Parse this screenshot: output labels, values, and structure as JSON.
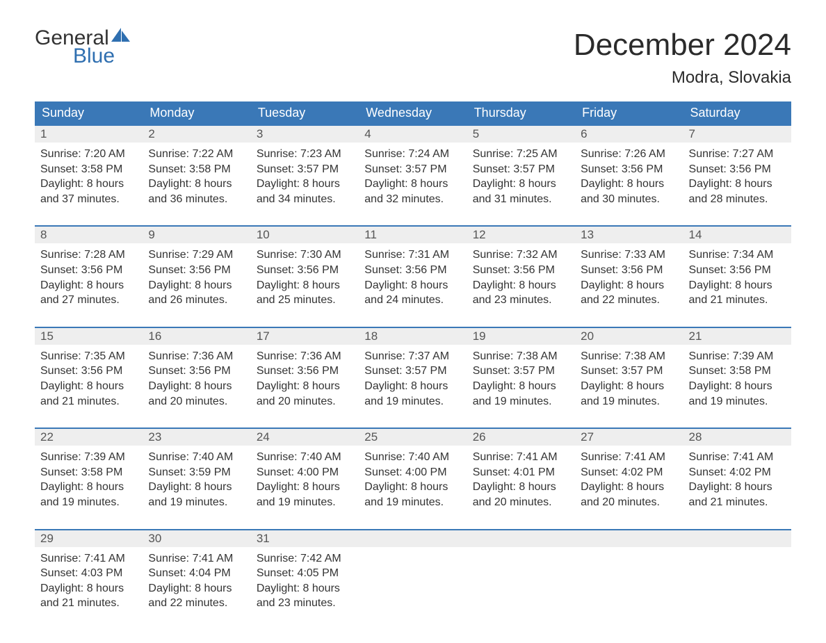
{
  "brand": {
    "text1": "General",
    "text2": "Blue",
    "sail_color": "#2f6fb0"
  },
  "title": "December 2024",
  "location": "Modra, Slovakia",
  "grid_border_color": "#3a78b7",
  "header_bg": "#3a78b7",
  "daynum_bg": "#eeeeee",
  "day_names": [
    "Sunday",
    "Monday",
    "Tuesday",
    "Wednesday",
    "Thursday",
    "Friday",
    "Saturday"
  ],
  "weeks": [
    [
      {
        "n": "1",
        "sunrise": "7:20 AM",
        "sunset": "3:58 PM",
        "daylight_h": "8",
        "daylight_m": "37"
      },
      {
        "n": "2",
        "sunrise": "7:22 AM",
        "sunset": "3:58 PM",
        "daylight_h": "8",
        "daylight_m": "36"
      },
      {
        "n": "3",
        "sunrise": "7:23 AM",
        "sunset": "3:57 PM",
        "daylight_h": "8",
        "daylight_m": "34"
      },
      {
        "n": "4",
        "sunrise": "7:24 AM",
        "sunset": "3:57 PM",
        "daylight_h": "8",
        "daylight_m": "32"
      },
      {
        "n": "5",
        "sunrise": "7:25 AM",
        "sunset": "3:57 PM",
        "daylight_h": "8",
        "daylight_m": "31"
      },
      {
        "n": "6",
        "sunrise": "7:26 AM",
        "sunset": "3:56 PM",
        "daylight_h": "8",
        "daylight_m": "30"
      },
      {
        "n": "7",
        "sunrise": "7:27 AM",
        "sunset": "3:56 PM",
        "daylight_h": "8",
        "daylight_m": "28"
      }
    ],
    [
      {
        "n": "8",
        "sunrise": "7:28 AM",
        "sunset": "3:56 PM",
        "daylight_h": "8",
        "daylight_m": "27"
      },
      {
        "n": "9",
        "sunrise": "7:29 AM",
        "sunset": "3:56 PM",
        "daylight_h": "8",
        "daylight_m": "26"
      },
      {
        "n": "10",
        "sunrise": "7:30 AM",
        "sunset": "3:56 PM",
        "daylight_h": "8",
        "daylight_m": "25"
      },
      {
        "n": "11",
        "sunrise": "7:31 AM",
        "sunset": "3:56 PM",
        "daylight_h": "8",
        "daylight_m": "24"
      },
      {
        "n": "12",
        "sunrise": "7:32 AM",
        "sunset": "3:56 PM",
        "daylight_h": "8",
        "daylight_m": "23"
      },
      {
        "n": "13",
        "sunrise": "7:33 AM",
        "sunset": "3:56 PM",
        "daylight_h": "8",
        "daylight_m": "22"
      },
      {
        "n": "14",
        "sunrise": "7:34 AM",
        "sunset": "3:56 PM",
        "daylight_h": "8",
        "daylight_m": "21"
      }
    ],
    [
      {
        "n": "15",
        "sunrise": "7:35 AM",
        "sunset": "3:56 PM",
        "daylight_h": "8",
        "daylight_m": "21"
      },
      {
        "n": "16",
        "sunrise": "7:36 AM",
        "sunset": "3:56 PM",
        "daylight_h": "8",
        "daylight_m": "20"
      },
      {
        "n": "17",
        "sunrise": "7:36 AM",
        "sunset": "3:56 PM",
        "daylight_h": "8",
        "daylight_m": "20"
      },
      {
        "n": "18",
        "sunrise": "7:37 AM",
        "sunset": "3:57 PM",
        "daylight_h": "8",
        "daylight_m": "19"
      },
      {
        "n": "19",
        "sunrise": "7:38 AM",
        "sunset": "3:57 PM",
        "daylight_h": "8",
        "daylight_m": "19"
      },
      {
        "n": "20",
        "sunrise": "7:38 AM",
        "sunset": "3:57 PM",
        "daylight_h": "8",
        "daylight_m": "19"
      },
      {
        "n": "21",
        "sunrise": "7:39 AM",
        "sunset": "3:58 PM",
        "daylight_h": "8",
        "daylight_m": "19"
      }
    ],
    [
      {
        "n": "22",
        "sunrise": "7:39 AM",
        "sunset": "3:58 PM",
        "daylight_h": "8",
        "daylight_m": "19"
      },
      {
        "n": "23",
        "sunrise": "7:40 AM",
        "sunset": "3:59 PM",
        "daylight_h": "8",
        "daylight_m": "19"
      },
      {
        "n": "24",
        "sunrise": "7:40 AM",
        "sunset": "4:00 PM",
        "daylight_h": "8",
        "daylight_m": "19"
      },
      {
        "n": "25",
        "sunrise": "7:40 AM",
        "sunset": "4:00 PM",
        "daylight_h": "8",
        "daylight_m": "19"
      },
      {
        "n": "26",
        "sunrise": "7:41 AM",
        "sunset": "4:01 PM",
        "daylight_h": "8",
        "daylight_m": "20"
      },
      {
        "n": "27",
        "sunrise": "7:41 AM",
        "sunset": "4:02 PM",
        "daylight_h": "8",
        "daylight_m": "20"
      },
      {
        "n": "28",
        "sunrise": "7:41 AM",
        "sunset": "4:02 PM",
        "daylight_h": "8",
        "daylight_m": "21"
      }
    ],
    [
      {
        "n": "29",
        "sunrise": "7:41 AM",
        "sunset": "4:03 PM",
        "daylight_h": "8",
        "daylight_m": "21"
      },
      {
        "n": "30",
        "sunrise": "7:41 AM",
        "sunset": "4:04 PM",
        "daylight_h": "8",
        "daylight_m": "22"
      },
      {
        "n": "31",
        "sunrise": "7:42 AM",
        "sunset": "4:05 PM",
        "daylight_h": "8",
        "daylight_m": "23"
      },
      null,
      null,
      null,
      null
    ]
  ],
  "labels": {
    "sunrise": "Sunrise:",
    "sunset": "Sunset:",
    "daylight_prefix": "Daylight:",
    "hours_word": "hours",
    "and_word": "and",
    "minutes_word": "minutes."
  }
}
